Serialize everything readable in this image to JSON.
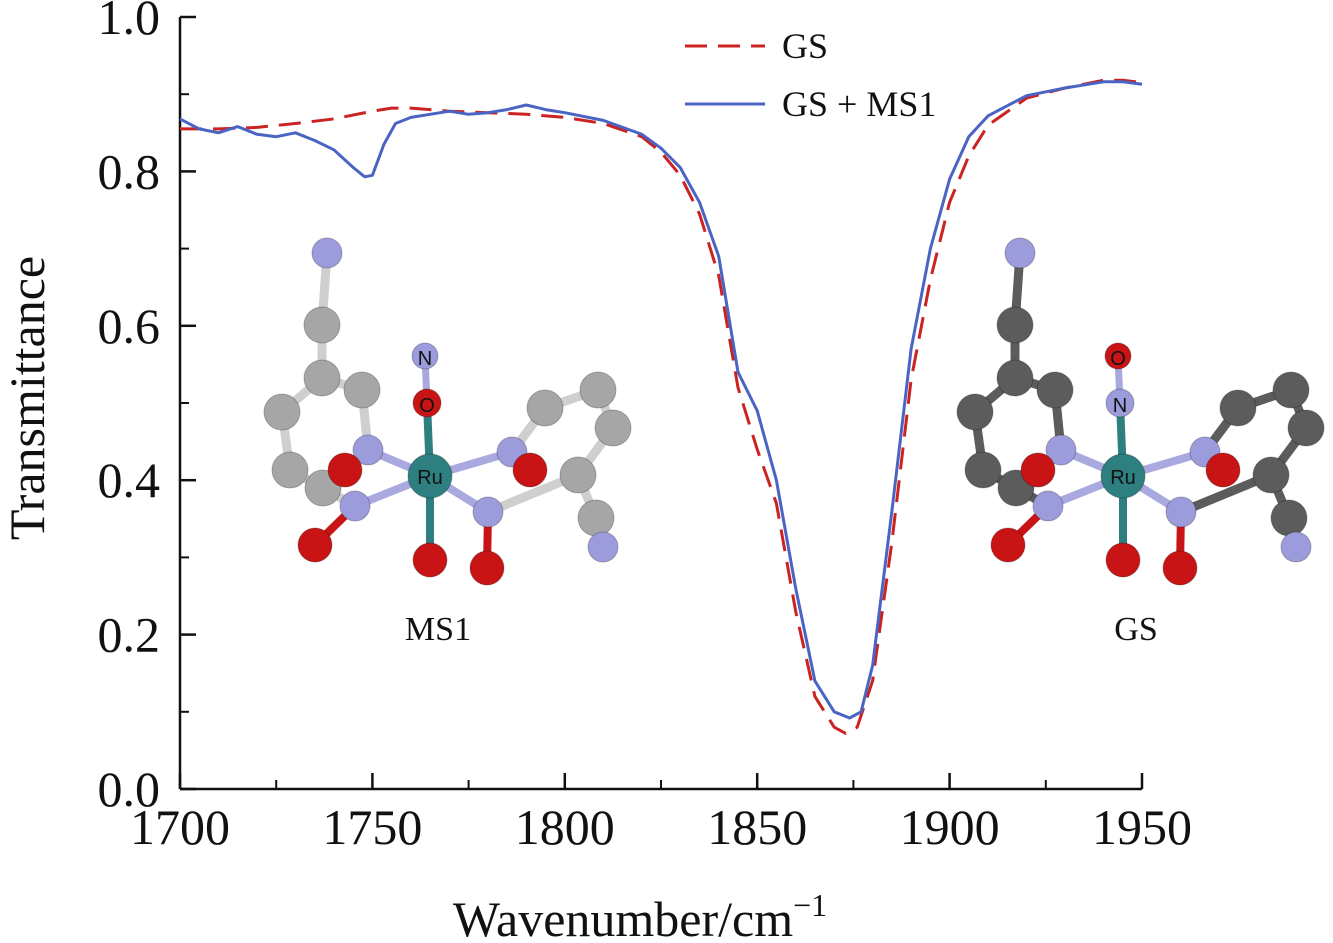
{
  "chart_data": {
    "type": "line",
    "title": "",
    "xlabel": "Wavenumber/cm",
    "xlabel_superscript": "−1",
    "ylabel": "Transmittance",
    "xlim": [
      1700,
      1950
    ],
    "ylim": [
      0.0,
      1.0
    ],
    "x_ticks": [
      1700,
      1750,
      1800,
      1850,
      1900,
      1950
    ],
    "y_ticks": [
      "0.0",
      "0.2",
      "0.4",
      "0.6",
      "0.8",
      "1.0"
    ],
    "legend_position": "top-right",
    "grid": false,
    "series": [
      {
        "name": "GS",
        "style": "dashed",
        "color": "#cc2222",
        "x": [
          1700,
          1710,
          1720,
          1730,
          1740,
          1750,
          1755,
          1760,
          1765,
          1770,
          1780,
          1790,
          1800,
          1810,
          1820,
          1825,
          1830,
          1835,
          1840,
          1845,
          1850,
          1855,
          1860,
          1865,
          1870,
          1873,
          1876,
          1880,
          1885,
          1890,
          1895,
          1900,
          1905,
          1910,
          1920,
          1930,
          1940,
          1945,
          1950
        ],
        "y": [
          0.855,
          0.855,
          0.857,
          0.862,
          0.868,
          0.878,
          0.882,
          0.882,
          0.88,
          0.878,
          0.876,
          0.874,
          0.87,
          0.862,
          0.845,
          0.825,
          0.795,
          0.745,
          0.665,
          0.52,
          0.44,
          0.37,
          0.23,
          0.12,
          0.08,
          0.072,
          0.08,
          0.14,
          0.32,
          0.53,
          0.66,
          0.76,
          0.82,
          0.86,
          0.895,
          0.908,
          0.918,
          0.918,
          0.915
        ]
      },
      {
        "name": "GS + MS1",
        "style": "solid",
        "color": "#4a64c4",
        "x": [
          1700,
          1705,
          1710,
          1715,
          1720,
          1725,
          1730,
          1735,
          1740,
          1745,
          1748,
          1750,
          1753,
          1756,
          1760,
          1765,
          1770,
          1775,
          1780,
          1785,
          1790,
          1795,
          1800,
          1810,
          1820,
          1825,
          1830,
          1835,
          1840,
          1845,
          1850,
          1855,
          1860,
          1865,
          1870,
          1874,
          1877,
          1880,
          1885,
          1890,
          1895,
          1900,
          1905,
          1910,
          1920,
          1930,
          1940,
          1945,
          1950
        ],
        "y": [
          0.868,
          0.855,
          0.85,
          0.858,
          0.848,
          0.845,
          0.85,
          0.84,
          0.828,
          0.805,
          0.793,
          0.795,
          0.835,
          0.862,
          0.87,
          0.874,
          0.878,
          0.874,
          0.876,
          0.88,
          0.886,
          0.88,
          0.876,
          0.866,
          0.848,
          0.83,
          0.805,
          0.76,
          0.69,
          0.54,
          0.49,
          0.4,
          0.26,
          0.14,
          0.1,
          0.092,
          0.1,
          0.16,
          0.36,
          0.57,
          0.7,
          0.79,
          0.845,
          0.872,
          0.898,
          0.908,
          0.916,
          0.916,
          0.913
        ]
      }
    ],
    "annotations": [
      "MS1",
      "GS"
    ]
  },
  "molecules": {
    "left": {
      "caption": "MS1",
      "center_label": "Ru",
      "upper_label": "N",
      "lower_label": "O"
    },
    "right": {
      "caption": "GS",
      "center_label": "Ru",
      "upper_label": "O",
      "lower_label": "N"
    }
  },
  "colors": {
    "axis": "#111111",
    "ru": "#2e7f7f",
    "nitrogen": "#9c9cdc",
    "oxygen": "#c81414",
    "carbon_light": "#a6a6a6",
    "carbon_dark": "#5c5c5c",
    "bond_light": "#cfcfcf",
    "bond_n": "#a9a9e0"
  }
}
